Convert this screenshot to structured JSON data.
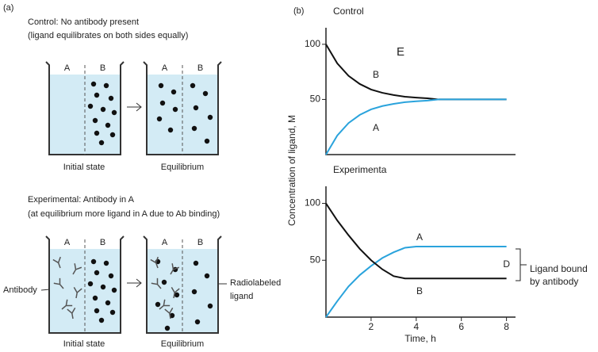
{
  "panel_a": {
    "label": "(a)",
    "side_a": "A",
    "side_b": "B",
    "initial": "Initial state",
    "equilibrium": "Equilibrium",
    "control_title": "Control: No antibody present",
    "control_subtitle": "(ligand equilibrates on both sides equally)",
    "experimental_title": "Experimental: Antibody in A",
    "experimental_subtitle": "(at equilibrium more ligand in A due to Ab binding)",
    "antibody": "Antibody",
    "radiolabeled": [
      "Radiolabeled",
      "ligand"
    ]
  },
  "panel_b_label": "(b)",
  "stray_label": "E",
  "chart_data": [
    {
      "type": "line",
      "title": "Control",
      "y_label": "Concentration of ligand, M",
      "x": [
        0,
        0.5,
        1,
        1.5,
        2,
        2.5,
        3,
        3.5,
        4,
        4.5,
        5,
        6,
        7,
        8
      ],
      "series": [
        {
          "name": "B",
          "color": "#111111",
          "values": [
            100,
            82.7,
            71.4,
            64,
            59,
            56,
            54,
            52.5,
            51.7,
            51,
            50,
            50,
            50,
            50
          ]
        },
        {
          "name": "A",
          "color": "#2aa3dc",
          "values": [
            0,
            17.3,
            28.6,
            36,
            41,
            44,
            46,
            47.5,
            48.3,
            49,
            50,
            50,
            50,
            50
          ]
        }
      ],
      "xlim": [
        0,
        8.4
      ],
      "ylim": [
        0,
        115
      ],
      "yticks": [
        50,
        100
      ]
    },
    {
      "type": "line",
      "title": "Experimenta",
      "x_label": "Time, h",
      "x": [
        0,
        0.5,
        1,
        1.5,
        2,
        2.5,
        3,
        3.5,
        4,
        5,
        6,
        7,
        8
      ],
      "series": [
        {
          "name": "A",
          "color": "#2aa3dc",
          "values": [
            0,
            14,
            27,
            37,
            45,
            52,
            57,
            61,
            62,
            62,
            62,
            62,
            62
          ]
        },
        {
          "name": "B",
          "color": "#111111",
          "values": [
            100,
            85,
            72,
            60,
            50,
            42,
            36,
            34,
            34,
            34,
            34,
            34,
            34
          ]
        }
      ],
      "xlim": [
        0,
        8.4
      ],
      "ylim": [
        0,
        115
      ],
      "xticks": [
        2,
        4,
        6,
        8
      ],
      "yticks": [
        50,
        100
      ],
      "annotation": {
        "label": "D",
        "text": [
          "Ligand bound",
          "by antibody"
        ]
      }
    }
  ]
}
